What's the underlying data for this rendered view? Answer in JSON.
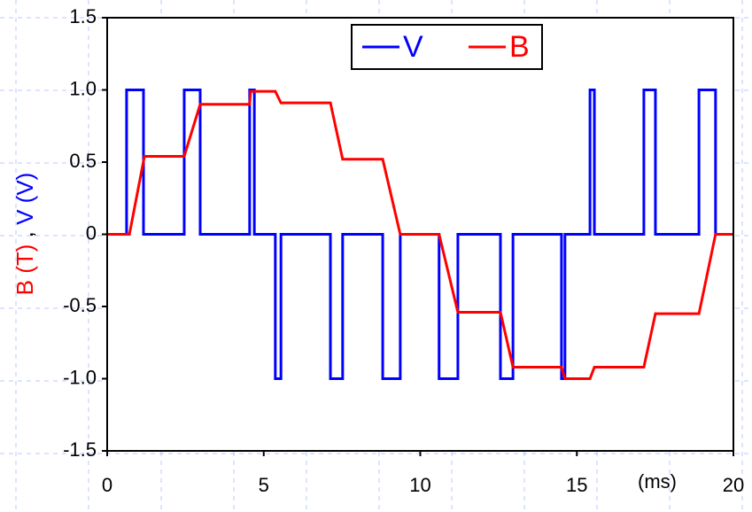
{
  "chart_data": {
    "type": "line",
    "ylabel_parts": [
      {
        "text": "B (T)",
        "color": "#ff0000"
      },
      {
        "text": ",",
        "color": "#000000"
      },
      {
        "text": "V (V)",
        "color": "#0000ff"
      }
    ],
    "annotation": "(ms)",
    "xlim": [
      0,
      20
    ],
    "xticks": [
      0,
      5,
      10,
      15,
      20
    ],
    "ylim": [
      -1.5,
      1.5
    ],
    "yticks": [
      1.5,
      {
        "value": 1,
        "label": "1.0"
      },
      0.5,
      0,
      -0.5,
      {
        "value": -1,
        "label": "-1.0"
      },
      -1.5
    ],
    "legend": "top",
    "series": [
      {
        "name": "V",
        "color": "#0000ff",
        "x": [
          0,
          0.62,
          0.62,
          1.16,
          1.16,
          2.46,
          2.46,
          2.97,
          2.97,
          4.55,
          4.55,
          4.7,
          4.7,
          5.37,
          5.37,
          5.55,
          5.55,
          7.13,
          7.13,
          7.52,
          7.52,
          8.8,
          8.8,
          9.36,
          9.36,
          10.6,
          10.6,
          11.2,
          11.2,
          12.56,
          12.56,
          12.96,
          12.96,
          14.51,
          14.51,
          14.62,
          14.62,
          15.42,
          15.42,
          15.56,
          15.56,
          17.14,
          17.14,
          17.51,
          17.51,
          18.9,
          18.9,
          19.43,
          19.43,
          20
        ],
        "values": [
          0,
          0,
          1,
          1,
          0,
          0,
          1,
          1,
          0,
          0,
          1,
          1,
          0,
          0,
          -1,
          -1,
          0,
          0,
          -1,
          -1,
          0,
          0,
          -1,
          -1,
          0,
          0,
          -1,
          -1,
          0,
          0,
          -1,
          -1,
          0,
          0,
          -1,
          -1,
          0,
          0,
          1,
          1,
          0,
          0,
          1,
          1,
          0,
          0,
          1,
          1,
          0,
          0
        ]
      },
      {
        "name": "B",
        "color": "#ff0000",
        "x": [
          0,
          0.71,
          1.19,
          2.46,
          2.97,
          4.55,
          4.58,
          5.37,
          5.55,
          7.13,
          7.52,
          8.8,
          9.36,
          10.6,
          11.2,
          12.56,
          12.96,
          14.51,
          14.62,
          15.42,
          15.56,
          17.14,
          17.51,
          18.9,
          19.43,
          20
        ],
        "values": [
          0,
          0,
          0.54,
          0.54,
          0.9,
          0.9,
          0.99,
          0.99,
          0.91,
          0.91,
          0.52,
          0.52,
          0,
          0,
          -0.54,
          -0.54,
          -0.92,
          -0.92,
          -1,
          -1,
          -0.92,
          -0.92,
          -0.55,
          -0.55,
          0,
          0
        ]
      }
    ]
  }
}
